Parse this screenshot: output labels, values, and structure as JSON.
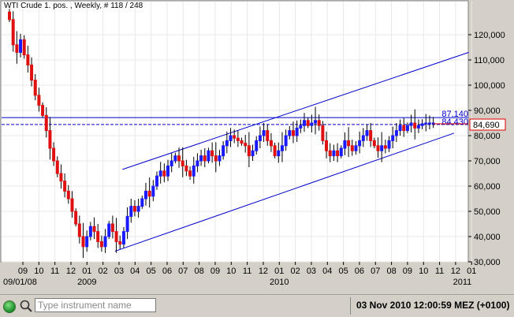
{
  "chart_data": {
    "type": "candlestick",
    "title": "WTI Crude 1. pos. , Weekly, # 118 / 248",
    "ylim": [
      30000,
      130000
    ],
    "y_ticks": [
      {
        "value": 30000,
        "label": "30,000"
      },
      {
        "value": 40000,
        "label": "40,000"
      },
      {
        "value": 50000,
        "label": "50,000"
      },
      {
        "value": 60000,
        "label": "60,000"
      },
      {
        "value": 70000,
        "label": "70,000"
      },
      {
        "value": 80000,
        "label": "80,000"
      },
      {
        "value": 90000,
        "label": "90,000"
      },
      {
        "value": 100000,
        "label": "100,000"
      },
      {
        "value": 110000,
        "label": "110,000"
      },
      {
        "value": 120000,
        "label": "120,000"
      }
    ],
    "x_ticks": [
      "09",
      "10",
      "11",
      "12",
      "01",
      "02",
      "03",
      "04",
      "05",
      "06",
      "07",
      "08",
      "09",
      "10",
      "11",
      "12",
      "01",
      "02",
      "03",
      "04",
      "05",
      "06",
      "07",
      "08",
      "09",
      "10",
      "11",
      "12",
      "01"
    ],
    "x_sublabels": [
      {
        "label": "09/01/08",
        "at_tick": 0
      },
      {
        "label": "2009",
        "at_tick": 4
      },
      {
        "label": "2010",
        "at_tick": 16
      },
      {
        "label": "2011",
        "at_tick": 28
      }
    ],
    "x_start": "2008-09-01",
    "weeks": 116,
    "closes": [
      126,
      116,
      113,
      118,
      112,
      108,
      102,
      96,
      92,
      88,
      82,
      75,
      70,
      65,
      62,
      58,
      55,
      50,
      45,
      40,
      36,
      40,
      44,
      42,
      38,
      36,
      40,
      45,
      42,
      38,
      37,
      42,
      48,
      52,
      50,
      52,
      55,
      58,
      56,
      60,
      64,
      66,
      64,
      68,
      70,
      72,
      70,
      68,
      66,
      64,
      68,
      70,
      72,
      70,
      74,
      72,
      70,
      72,
      76,
      78,
      80,
      79,
      78,
      77,
      76,
      72,
      74,
      78,
      80,
      82,
      78,
      76,
      72,
      74,
      76,
      80,
      82,
      80,
      83,
      84,
      86,
      84,
      85,
      86,
      84,
      78,
      74,
      72,
      74,
      72,
      75,
      78,
      76,
      74,
      76,
      78,
      80,
      82,
      78,
      76,
      74,
      76,
      75,
      78,
      80,
      82,
      84,
      82,
      84,
      85,
      83,
      84,
      84.69,
      85,
      85,
      85
    ],
    "ranges": [
      2000,
      5500,
      9000,
      4000,
      3000,
      6000,
      5000,
      4000,
      5000
    ],
    "current_price_label": "84,690",
    "current_price": 84690,
    "horizontal_levels": [
      {
        "value": 87140,
        "label": "87,140",
        "style": "solid"
      },
      {
        "value": 84430,
        "label": "84,430",
        "style": "dashed"
      }
    ],
    "trend_channel": {
      "lower": {
        "from": [
          "2009-02-23",
          34200
        ],
        "to": [
          "2010-11-29",
          81000
        ]
      },
      "upper": {
        "from": [
          "2009-03-09",
          66600
        ],
        "to": [
          "2010-12-27",
          113000
        ]
      }
    },
    "colors": {
      "up": "#1a1aff",
      "down": "#e01010",
      "line": "#0000cc",
      "grid": "#e8e8e8",
      "price_box": "#e00000"
    }
  },
  "status": {
    "search_placeholder": "Type instrument name",
    "datetime": "03 Nov 2010 12:00:59  MEZ (+0100)"
  }
}
